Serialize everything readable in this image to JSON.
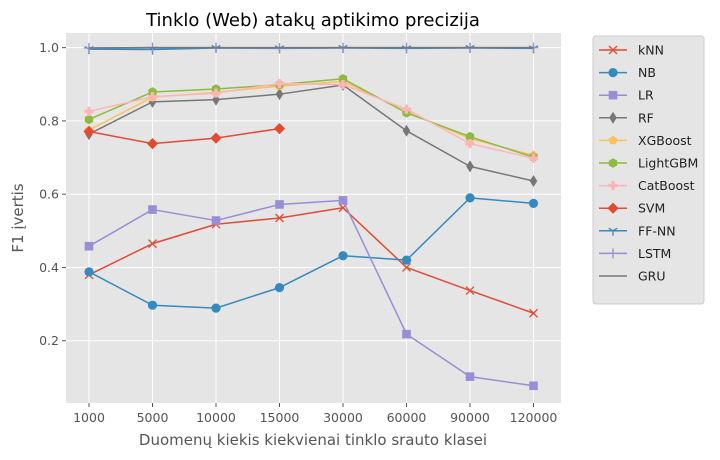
{
  "chart_data": {
    "type": "line",
    "title": "Tinklo (Web) atakų aptikimo precizija",
    "xlabel": "Duomenų kiekis kiekvienai tinklo srauto klasei",
    "ylabel": "F1 įvertis",
    "categories": [
      "1000",
      "5000",
      "10000",
      "15000",
      "30000",
      "60000",
      "90000",
      "120000"
    ],
    "yticks": [
      "0.2",
      "0.4",
      "0.6",
      "0.8",
      "1.0"
    ],
    "ylim": [
      0.03,
      1.04
    ],
    "grid": true,
    "legend_position": "outside-right",
    "series": [
      {
        "name": "kNN",
        "color": "#E24A33",
        "marker": "x",
        "values": [
          0.38,
          0.465,
          0.518,
          0.535,
          0.563,
          0.4,
          0.337,
          0.275
        ]
      },
      {
        "name": "NB",
        "color": "#348ABD",
        "marker": "o",
        "values": [
          0.388,
          0.297,
          0.289,
          0.345,
          0.432,
          0.42,
          0.59,
          0.575
        ]
      },
      {
        "name": "LR",
        "color": "#988ED5",
        "marker": "s",
        "values": [
          0.458,
          0.558,
          0.528,
          0.572,
          0.583,
          0.218,
          0.102,
          0.077
        ]
      },
      {
        "name": "RF",
        "color": "#777777",
        "marker": "d",
        "values": [
          0.764,
          0.852,
          0.858,
          0.873,
          0.898,
          0.773,
          0.676,
          0.636
        ]
      },
      {
        "name": "XGBoost",
        "color": "#FBC15E",
        "marker": "p",
        "values": [
          0.775,
          0.865,
          0.878,
          0.895,
          0.908,
          0.825,
          0.752,
          0.706
        ]
      },
      {
        "name": "LightGBM",
        "color": "#8EBA42",
        "marker": "h",
        "values": [
          0.804,
          0.879,
          0.887,
          0.899,
          0.915,
          0.822,
          0.757,
          0.701
        ]
      },
      {
        "name": "CatBoost",
        "color": "#FFB5B8",
        "marker": "P",
        "values": [
          0.826,
          0.866,
          0.876,
          0.902,
          0.899,
          0.832,
          0.738,
          0.698
        ]
      },
      {
        "name": "SVM",
        "color": "#E24A33",
        "marker": "D",
        "values": [
          0.771,
          0.738,
          0.753,
          0.779,
          null,
          null,
          null,
          null
        ]
      },
      {
        "name": "FF-NN",
        "color": "#348ABD",
        "marker": "1",
        "values": [
          0.996,
          0.995,
          0.999,
          0.998,
          0.999,
          0.998,
          0.999,
          0.998
        ]
      },
      {
        "name": "LSTM",
        "color": "#988ED5",
        "marker": "+",
        "values": [
          0.999,
          1.0,
          1.0,
          0.999,
          1.0,
          1.0,
          1.0,
          1.0
        ]
      },
      {
        "name": "GRU",
        "color": "#777777",
        "marker": "none",
        "values": [
          0.999,
          1.0,
          1.0,
          1.0,
          1.0,
          1.0,
          1.0,
          1.0
        ]
      }
    ]
  }
}
